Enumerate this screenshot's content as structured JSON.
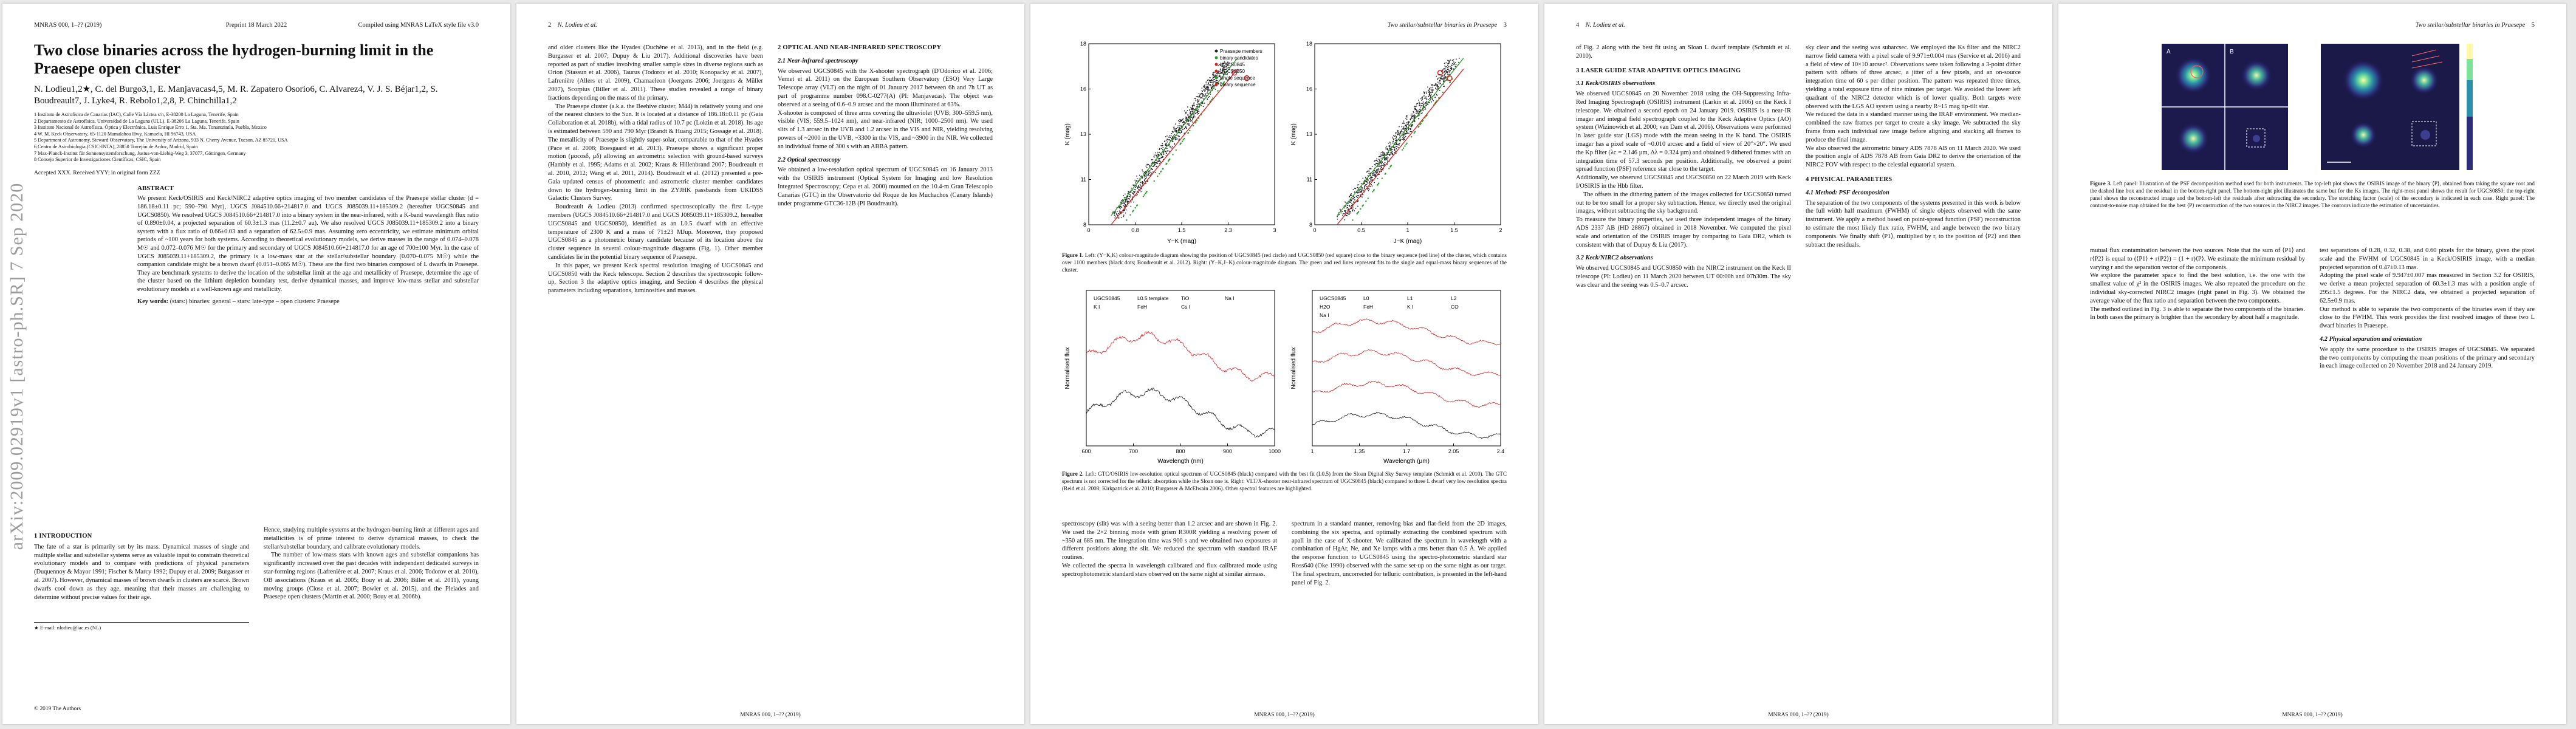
{
  "arxiv_stamp": "arXiv:2009.02919v1 [astro-ph.SR] 7 Sep 2020",
  "p1": {
    "hdr_l": "MNRAS 000, 1–?? (2019)",
    "hdr_c": "Preprint 18 March 2022",
    "hdr_r": "Compiled using MNRAS LaTeX style file v3.0",
    "title": "Two close binaries across the hydrogen-burning limit in the Praesepe open cluster",
    "authors": "N. Lodieu1,2★, C. del Burgo3,1, E. Manjavacas4,5, M. R. Zapatero Osorio6, C. Alvarez4, V. J. S. Béjar1,2, S. Boudreault7, J. Lyke4, R. Rebolo1,2,8, P. Chinchilla1,2",
    "affil": "1 Instituto de Astrofísica de Canarias (IAC), Calle Vía Láctea s/n, E-38200 La Laguna, Tenerife, Spain\n2 Departamento de Astrofísica, Universidad de La Laguna (ULL), E-38206 La Laguna, Tenerife, Spain\n3 Instituto Nacional de Astrofísica, Óptica y Electrónica, Luis Enrique Erro 1, Sta. Ma. Tonantzintla, Puebla, Mexico\n4 W. M. Keck Observatory, 65-1120 Mamalahoa Hwy, Kamuela, HI 96743, USA\n5 Department of Astronomy, Steward Observatory, The University of Arizona, 933 N. Cherry Avenue, Tucson, AZ 85721, USA\n6 Centro de Astrobiología (CSIC-INTA), 28850 Torrejón de Ardoz, Madrid, Spain\n7 Max-Planck-Institut für Sonnensystemforschung, Justus-von-Liebig-Weg 3, 37077, Göttingen, Germany\n8 Consejo Superior de Investigaciones Científicas, CSIC, Spain",
    "accepted": "Accepted XXX. Received YYY; in original form ZZZ",
    "abstract_label": "ABSTRACT",
    "abstract": "We present Keck/OSIRIS and Keck/NIRC2 adaptive optics imaging of two member candidates of the Praesepe stellar cluster (d = 186.18±0.11 pc; 590–790 Myr), UGCS J084510.66+214817.0 and UGCS J085039.11+185309.2 (hereafter UGCS0845 and UGCS0850). We resolved UGCS J084510.66+214817.0 into a binary system in the near-infrared, with a K-band wavelength flux ratio of 0.890±0.04, a projected separation of 60.3±1.3 mas (11.2±0.7 au). We also resolved UGCS J085039.11+185309.2 into a binary system with a flux ratio of 0.66±0.03 and a separation of 62.5±0.9 mas. Assuming zero eccentricity, we estimate minimum orbital periods of ~100 years for both systems. According to theoretical evolutionary models, we derive masses in the range of 0.074–0.078 M☉ and 0.072–0.076 M☉ for the primary and secondary of UGCS J084510.66+214817.0 for an age of 700±100 Myr. In the case of UGCS J085039.11+185309.2, the primary is a low-mass star at the stellar/substellar boundary (0.070–0.075 M☉) while the companion candidate might be a brown dwarf (0.051–0.065 M☉). These are the first two binaries composed of L dwarfs in Praesepe. They are benchmark systems to derive the location of the substellar limit at the age and metallicity of Praesepe, determine the age of the cluster based on the lithium depletion boundary test, derive dynamical masses, and improve low-mass stellar and substellar evolutionary models at a well-known age and metallicity.",
    "keywords_label": "Key words:",
    "keywords": "(stars:) binaries: general – stars: late-type – open clusters: Praesepe",
    "s1_title": "1 INTRODUCTION",
    "s1_a": "The fate of a star is primarily set by its mass. Dynamical masses of single and multiple stellar and substellar systems serve as valuable input to constrain theoretical evolutionary models and to compare with predictions of physical parameters (Duquennoy & Mayor 1991; Fischer & Marcy 1992; Dupuy et al. 2009; Burgasser et al. 2007). However, dynamical masses of brown dwarfs in clusters are scarce. Brown dwarfs cool down as they age, meaning that their masses are challenging to determine without precise values for their age.",
    "s1_b": "Hence, studying multiple systems at the hydrogen-burning limit at different ages and metallicities is of prime interest to derive dynamical masses, to check the stellar/substellar boundary, and calibrate evolutionary models.",
    "s1_c": "The number of low-mass stars with known ages and substellar companions has significantly increased over the past decades with independent dedicated surveys in star-forming regions (Lafrenière et al. 2007; Kraus et al. 2006; Todorov et al. 2010), OB associations (Kraus et al. 2005; Bouy et al. 2006; Biller et al. 2011), young moving groups (Close et al. 2007; Bowler et al. 2015), and the Pleiades and Praesepe open clusters (Martín et al. 2000; Bouy et al. 2006b).",
    "footnote": "★ E-mail: nlodieu@iac.es (NL)",
    "foot_l": "© 2019 The Authors",
    "foot_r": "",
    "foot_c": ""
  },
  "p2": {
    "hdr_l": "2",
    "hdr_l2": "N. Lodieu et al.",
    "s_a": "and older clusters like the Hyades (Duchêne et al. 2013), and in the field (e.g. Burgasser et al. 2007; Dupuy & Liu 2017). Additional discoveries have been reported as part of studies involving smaller sample sizes in diverse regions such as Orion (Stassun et al. 2006), Taurus (Todorov et al. 2010; Konopacky et al. 2007), Lafrenière (Allers et al. 2009), Chamaeleon (Joergens 2006; Joergens & Müller 2007), Scorpius (Biller et al. 2011). These studies revealed a range of binary fractions depending on the mass of the primary.",
    "s_b": "The Praesepe cluster (a.k.a. the Beehive cluster, M44) is relatively young and one of the nearest clusters to the Sun. It is located at a distance of 186.18±0.11 pc (Gaia Collaboration et al. 2018b), with a tidal radius of 10.7 pc (Loktin et al. 2018). Its age is estimated between 590 and 790 Myr (Brandt & Huang 2015; Gossage et al. 2018). The metallicity of Praesepe is slightly super-solar, comparable to that of the Hyades (Pace et al. 2008; Boesgaard et al. 2013). Praesepe shows a significant proper motion (μαcosδ, μδ) allowing an astrometric selection with ground-based surveys (Hambly et al. 1995; Adams et al. 2002; Kraus & Hillenbrand 2007; Boudreault et al. 2010, 2012; Wang et al. 2011, 2014). Boudreault et al. (2012) presented a pre-Gaia updated census of photometric and astrometric cluster member candidates down to the hydrogen-burning limit in the ZYJHK passbands from UKIDSS Galactic Clusters Survey.",
    "s_c": "Boudreault & Lodieu (2013) confirmed spectroscopically the first L-type members (UGCS J084510.66+214817.0 and UGCS J085039.11+185309.2, hereafter UGCS0845 and UGCS0850), identified as an L0.5 dwarf with an effective temperature of 2300 K and a mass of 71±23 MJup. Moreover, they proposed UGCS0845 as a photometric binary candidate because of its location above the cluster sequence in several colour-magnitude diagrams (Fig. 1). Other member candidates lie in the potential binary sequence of Praesepe.",
    "s_d": "In this paper, we present Keck spectral resolution imaging of UGCS0845 and UGCS0850 with the Keck telescope. Section 2 describes the spectroscopic follow-up, Section 3 the adaptive optics imaging, and Section 4 describes the physical parameters including separations, luminosities and masses.",
    "s2_title": "2 OPTICAL AND NEAR-INFRARED SPECTROSCOPY",
    "s21_title": "2.1 Near-infrared spectroscopy",
    "s21": "We observed UGCS0845 with the X-shooter spectrograph (D'Odorico et al. 2006; Vernet et al. 2011) on the European Southern Observatory (ESO) Very Large Telescope array (VLT) on the night of 01 January 2017 between 6h and 7h UT as part of programme number 098.C-0277(A) (PI: Manjavacas). The object was observed at a seeing of 0.6–0.9 arcsec and the moon illuminated at 63%.\nX-shooter is composed of three arms covering the ultraviolet (UVB; 300–559.5 nm), visible (VIS; 559.5–1024 nm), and near-infrared (NIR; 1000–2500 nm). We used slits of 1.3 arcsec in the UVB and 1.2 arcsec in the VIS and NIR, yielding resolving powers of ~2000 in the UVB, ~3300 in the VIS, and ~3900 in the NIR. We collected an individual frame of 300 s with an ABBA pattern.",
    "s22_title": "2.2 Optical spectroscopy",
    "s22": "We obtained a low-resolution optical spectrum of UGCS0845 on 16 January 2013 with the OSIRIS instrument (Optical System for Imaging and low Resolution Integrated Spectroscopy; Cepa et al. 2000) mounted on the 10.4-m Gran Telescopio Canarias (GTC) in the Observatorio del Roque de los Muchachos (Canary Islands) under programme GTC36-12B (PI Boudreault).",
    "foot": "MNRAS 000, 1–?? (2019)"
  },
  "p3": {
    "hdr_r": "Two stellar/substellar binaries in Praesepe",
    "hdr_n": "3",
    "fig1_cap_label": "Figure 1.",
    "fig1_cap": "Left: (Y−K,K) colour-magnitude diagram showing the position of UGCS0845 (red circle) and UGCS0850 (red square) close to the binary sequence (red line) of the cluster, which contains over 1100 members (black dots; Boudreault et al. 2012). Right: (Y−K,J−K) colour-magnitude diagram. The green and red lines represent fits to the single and equal-mass binary sequences of the cluster.",
    "fig2_cap_label": "Figure 2.",
    "fig2_cap": "Left: GTC/OSIRIS low-resolution optical spectrum of UGCS0845 (black) compared with the best fit (L0.5) from the Sloan Digital Sky Survey template (Schmidt et al. 2010). The GTC spectrum is not corrected for the telluric absorption while the Sloan one is. Right: VLT/X-shooter near-infrared spectrum of UGCS0845 (black) compared to three L dwarf very low resolution spectra (Reid et al. 2008; Kirkpatrick et al. 2010; Burgasser & McElwain 2006). Other spectral features are highlighted.",
    "cmd_legend": [
      "Praesepe members",
      "binary candidates",
      "UGCS0845",
      "UGCS0850",
      "single sequence",
      "binary sequence"
    ],
    "cmd_x1": "Y−K (mag)",
    "cmd_y1": "K (mag)",
    "cmd_x2": "J−K (mag)",
    "cmd_y2": "K (mag)",
    "spec_x1": "Wavelength (nm)",
    "spec_y1": "Normalised flux",
    "spec_x2": "Wavelength (µm)",
    "spec_y2": "Normalised flux",
    "spec_left_labels": [
      "UGCS0845",
      "L0.5 template",
      "TiO",
      "Na I",
      "K I",
      "FeH",
      "Cs I"
    ],
    "spec_right_labels": [
      "UGCS0845",
      "L0",
      "L1",
      "L2",
      "H2O",
      "FeH",
      "K I",
      "CO",
      "Na I"
    ],
    "col_l": "spectroscopy (slit) was with a seeing better than 1.2 arcsec and are shown in Fig. 2. We used the 2×2 binning mode with grism R300R yielding a resolving power of ~350 at 685 nm. The integration time was 900 s and we obtained two exposures at different positions along the slit. We reduced the spectrum with standard IRAF routines.\nWe collected the spectra in wavelength calibrated and flux calibrated mode using spectrophotometric standard stars observed on the same night at similar airmass.",
    "col_r": "spectrum in a standard manner, removing bias and flat-field from the 2D images, combining the six spectra, and optimally extracting the combined spectrum with apall in the case of X-shooter. We calibrated the spectrum in wavelength with a combination of HgAr, Ne, and Xe lamps with a rms better than 0.5 Å. We applied the response function to UGCS0845 using the spectro-photometric standard star Ross640 (Oke 1990) observed with the same set-up on the same night as our target. The final spectrum, uncorrected for telluric contribution, is presented in the left-hand panel of Fig. 2.",
    "foot": "MNRAS 000, 1–?? (2019)"
  },
  "p4": {
    "hdr_l": "4",
    "hdr_l2": "N. Lodieu et al.",
    "col_l_top": "of Fig. 2 along with the best fit using an Sloan L dwarf template (Schmidt et al. 2010).",
    "s3_title": "3 LASER GUIDE STAR ADAPTIVE OPTICS IMAGING",
    "s31_title": "3.1 Keck/OSIRIS observations",
    "s31": "We observed UGCS0845 on 20 November 2018 using the OH-Suppressing Infra-Red Imaging Spectrograph (OSIRIS) instrument (Larkin et al. 2006) on the Keck I telescope. We obtained a second epoch on 24 January 2019. OSIRIS is a near-IR imager and integral field spectrograph coupled to the Keck Adaptive Optics (AO) system (Wizinowich et al. 2000; van Dam et al. 2006). Observations were performed in laser guide star (LGS) mode with the mean seeing in the K band. The OSIRIS imager has a pixel scale of ~0.010 arcsec and a field of view of 20″×20″. We used the Kp filter (λc = 2.146 µm, Δλ = 0.324 µm) and obtained 9 dithered frames with an integration time of 57.3 seconds per position. Additionally, we observed a point spread function (PSF) reference star close to the target.\nAdditionally, we observed UGCS0845 and UGCS0850 on 22 March 2019 with Keck I/OSIRIS in the Hbb filter.",
    "col_l_mid": "The offsets in the dithering pattern of the images collected for UGCS0850 turned out to be too small for a proper sky subtraction. Hence, we directly used the original images, without subtracting the sky background.\nTo measure the binary properties, we used three independent images of the binary ADS 2337 AB (HD 28867) obtained in 2018 November. We computed the pixel scale and orientation of the OSIRIS imager by comparing to Gaia DR2, which is consistent with that of Dupuy & Liu (2017).",
    "s32_title": "3.2 Keck/NIRC2 observations",
    "s32": "We observed UGCS0845 and UGCS0850 with the NIRC2 instrument on the Keck II telescope (PI: Lodieu) on 11 March 2020 between UT 00:00h and 07h30m. The sky was clear and the seeing was 0.5–0.7 arcsec.",
    "col_r": "sky clear and the seeing was subarcsec. We employed the Ks filter and the NIRC2 narrow field camera with a pixel scale of 9.971±0.004 mas (Service et al. 2016) and a field of view of 10×10 arcsec². Observations were taken following a 3-point dither pattern with offsets of three arcsec, a jitter of a few pixels, and an on-source integration time of 60 s per dither position. The pattern was repeated three times, yielding a total exposure time of nine minutes per target. We avoided the lower left quadrant of the NIRC2 detector which is of lower quality. Both targets were observed with the LGS AO system using a nearby R~15 mag tip-tilt star.\nWe reduced the data in a standard manner using the IRAF environment. We median-combined the raw frames per target to create a sky image. We subtracted the sky frame from each individual raw image before aligning and stacking all frames to produce the final image.\nWe also observed the astrometric binary ADS 7878 AB on 11 March 2020. We used the position angle of ADS 7878 AB from Gaia DR2 to derive the orientation of the NIRC2 FOV with respect to the celestial equatorial system.",
    "s4_title": "4 PHYSICAL PARAMETERS",
    "s41_title": "4.1 Method: PSF decomposition",
    "s41": "The separation of the two components of the systems presented in this work is below the full width half maximum (FWHM) of single objects observed with the same instrument. We apply a method based on point-spread function (PSF) reconstruction to estimate the most likely flux ratio, FWHM, and angle between the two binary components. We finally shift ⟨P1⟩, multiplied by r, to the position of ⟨P2⟩ and then subtract the residuals.",
    "foot": "MNRAS 000, 1–?? (2019)"
  },
  "p5": {
    "hdr_r": "Two stellar/substellar binaries in Praesepe",
    "hdr_n": "5",
    "fig3_cap_label": "Figure 3.",
    "fig3_cap": "Left panel: Illustration of the PSF decomposition method used for both instruments. The top-left plot shows the OSIRIS image of the binary ⟨P⟩, obtained from taking the square root and the dashed line box and the residual in the bottom-right panel. The bottom-right plot illustrates the same but for the Ks images. The right-most panel shows the result for UGCS0850: the top-right panel shows the reconstructed image and the bottom-left the residuals after subtracting the secondary. The stretching factor (scale) of the secondary is indicated in each case. Right panel: The contrast-to-noise map obtained for the best ⟨P⟩ reconstruction of the two sources in the NIRC2 images. The contours indicate the estimation of uncertainties.",
    "col_l": "mutual flux contamination between the two sources. Note that the sum of ⟨P1⟩ and r⟨P2⟩ is equal to (⟨P1⟩ + r⟨P2⟩) = (1 + r)⟨P⟩. We estimate the minimum residual by varying r and the separation vector of the components.\nWe explore the parameter space to find the best solution, i.e. the one with the smallest value of χ² in the OSIRIS images. We also repeated the procedure on the individual sky-corrected NIRC2 images (right panel in Fig. 3). We obtained the average value of the flux ratio and separation between the two components.\nThe method outlined in Fig. 3 is able to separate the two components of the binaries. In both cases the primary is brighter than the secondary by about half a magnitude.",
    "col_r": "test separations of 0.28, 0.32, 0.38, and 0.60 pixels for the binary, given the pixel scale and the FWHM of UGCS0845 in a Keck/OSIRIS image, with a median projected separation of 0.47±0.13 mas.\nAdopting the pixel scale of 9.947±0.007 mas measured in Section 3.2 for OSIRIS, we derive a mean projected separation of 60.3±1.3 mas with a position angle of 295±1.5 degrees. For the NIRC2 data, we obtained a projected separation of 62.5±0.9 mas.\nOur method is able to separate the two components of the binaries even if they are close to the FWHM. This work provides the first resolved images of these two L dwarf binaries in Praesepe.",
    "s42_title": "4.2 Physical separation and orientation",
    "s42": "We apply the same procedure to the OSIRIS images of UGCS0845. We separated the two components by computing the mean positions of the primary and secondary in each image collected on 20 November 2018 and 24 January 2019.",
    "img_labels": [
      "A",
      "B"
    ],
    "foot": "MNRAS 000, 1–?? (2019)"
  },
  "chart_data": [
    {
      "type": "scatter",
      "title": "",
      "xlabel": "Y−K (mag)",
      "ylabel": "K (mag)",
      "note": "colour-magnitude diagram, Praesepe members with two highlighted L dwarfs",
      "series": [
        {
          "name": "Praesepe members",
          "color": "#111111"
        },
        {
          "name": "binary candidates",
          "color": "#2a9d2a"
        },
        {
          "name": "UGCS0845",
          "color": "#d62020",
          "x": [
            2.55
          ],
          "y": [
            16.1
          ]
        },
        {
          "name": "UGCS0850",
          "color": "#d62020",
          "x": [
            2.35
          ],
          "y": [
            16.4
          ]
        }
      ],
      "xlim": [
        0,
        3
      ],
      "ylim": [
        18,
        8
      ]
    },
    {
      "type": "scatter",
      "title": "",
      "xlabel": "J−K (mag)",
      "ylabel": "K (mag)",
      "series": [
        {
          "name": "Praesepe members",
          "color": "#111111"
        },
        {
          "name": "UGCS0845",
          "color": "#d62020",
          "x": [
            1.45
          ],
          "y": [
            16.1
          ]
        },
        {
          "name": "UGCS0850",
          "color": "#d62020",
          "x": [
            1.35
          ],
          "y": [
            16.4
          ]
        }
      ],
      "xlim": [
        0,
        2
      ],
      "ylim": [
        18,
        8
      ]
    },
    {
      "type": "line",
      "title": "",
      "xlabel": "Wavelength (nm)",
      "ylabel": "Normalised flux",
      "series": [
        {
          "name": "UGCS0845",
          "color": "#111111"
        },
        {
          "name": "L0.5 template",
          "color": "#d62020"
        }
      ],
      "xlim": [
        600,
        1000
      ]
    },
    {
      "type": "line",
      "title": "",
      "xlabel": "Wavelength (µm)",
      "ylabel": "Normalised flux",
      "series": [
        {
          "name": "UGCS0845",
          "color": "#111111"
        },
        {
          "name": "L0",
          "color": "#d62020"
        },
        {
          "name": "L1",
          "color": "#d62020"
        },
        {
          "name": "L2",
          "color": "#d62020"
        }
      ],
      "xlim": [
        1.0,
        2.4
      ]
    }
  ]
}
